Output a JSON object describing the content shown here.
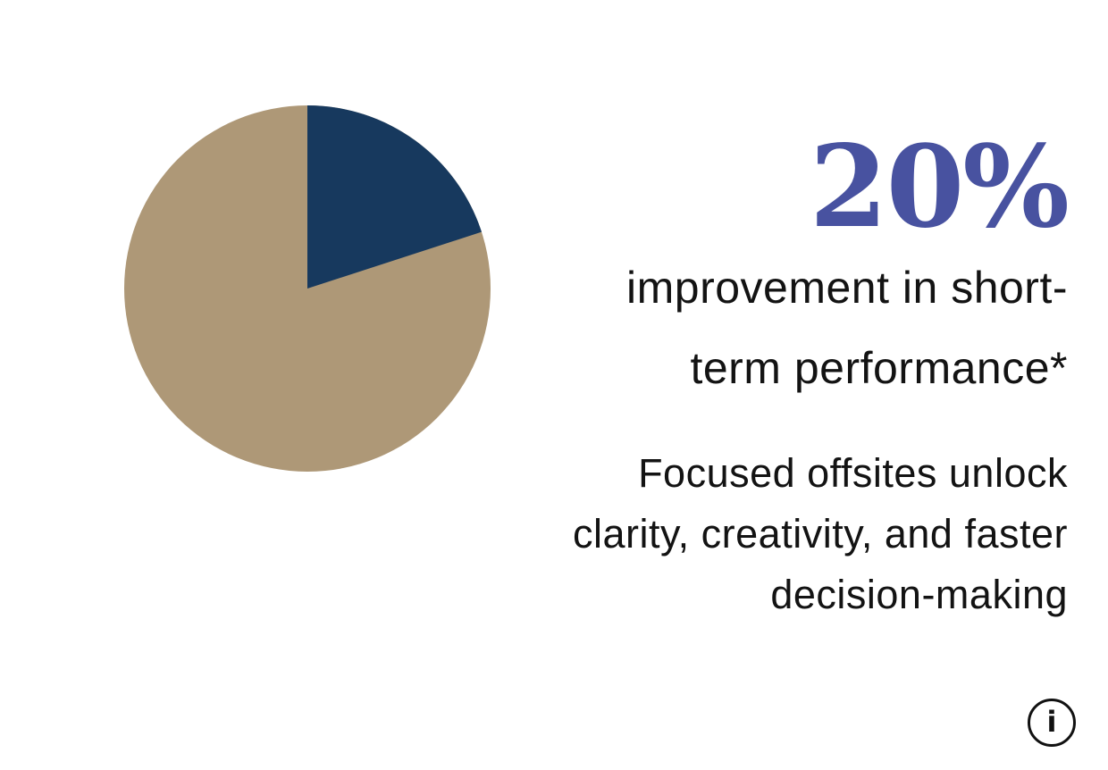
{
  "page": {
    "background_color": "#ffffff",
    "text_color": "#131313"
  },
  "stat": {
    "value": "20%",
    "value_color": "#4852A0",
    "description_lines": [
      "improvement in short-",
      "term performance*"
    ],
    "note_lines": [
      "Focused offsites unlock",
      "clarity, creativity, and faster",
      "decision-making"
    ]
  },
  "chart_data": {
    "type": "pie",
    "title": "20% improvement in short-term performance*",
    "slices": [
      {
        "label": "highlighted share",
        "value": 20,
        "color": "#17395E"
      },
      {
        "label": "remainder",
        "value": 80,
        "color": "#AE9877"
      }
    ],
    "start_angle_deg": 0,
    "direction": "clockwise",
    "legend_position": "none",
    "labels_visible": false
  },
  "info_button": {
    "glyph": "i"
  }
}
